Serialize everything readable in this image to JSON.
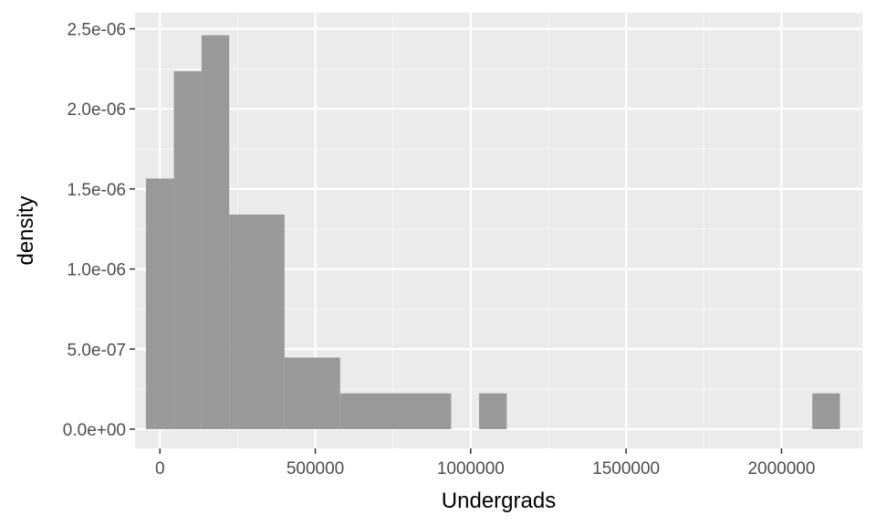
{
  "chart_data": {
    "type": "bar",
    "subtype": "histogram",
    "xlabel": "Undergrads",
    "ylabel": "density",
    "xlim": [
      -80000,
      2260000
    ],
    "ylim": [
      -1.2e-07,
      2.6e-06
    ],
    "x_ticks": [
      0,
      500000,
      1000000,
      1500000,
      2000000
    ],
    "x_tick_labels": [
      "0",
      "500000",
      "1000000",
      "1500000",
      "2000000"
    ],
    "y_ticks": [
      0,
      5e-07,
      1e-06,
      1.5e-06,
      2e-06,
      2.5e-06
    ],
    "y_tick_labels": [
      "0.0e+00",
      "5.0e-07",
      "1.0e-06",
      "1.5e-06",
      "2.0e-06",
      "2.5e-06"
    ],
    "grid": true,
    "bins": [
      {
        "x0": -45000,
        "x1": 45000,
        "density": 1.565e-06
      },
      {
        "x0": 45000,
        "x1": 134000,
        "density": 2.235e-06
      },
      {
        "x0": 134000,
        "x1": 223000,
        "density": 2.46e-06
      },
      {
        "x0": 223000,
        "x1": 401000,
        "density": 1.34e-06
      },
      {
        "x0": 401000,
        "x1": 580000,
        "density": 4.47e-07
      },
      {
        "x0": 580000,
        "x1": 937000,
        "density": 2.235e-07
      },
      {
        "x0": 1027000,
        "x1": 1116000,
        "density": 2.235e-07
      },
      {
        "x0": 2099000,
        "x1": 2188000,
        "density": 2.235e-07
      }
    ],
    "colors": {
      "bar": "#999999",
      "panel": "#ebebeb",
      "grid_major": "#ffffff",
      "grid_minor": "#f5f5f5",
      "tick_label": "#4d4d4d",
      "tick_mark": "#333333"
    }
  }
}
